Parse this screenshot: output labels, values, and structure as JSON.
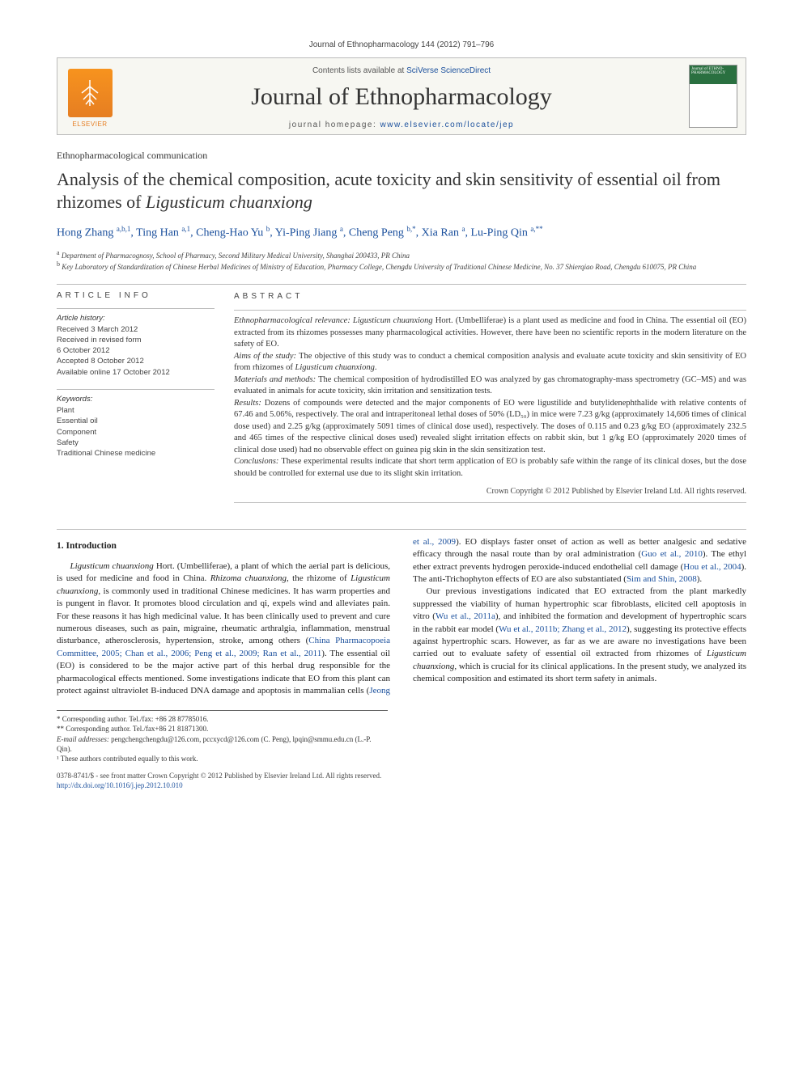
{
  "header": {
    "citation": "Journal of Ethnopharmacology 144 (2012) 791–796",
    "contents_prefix": "Contents lists available at ",
    "contents_link": "SciVerse ScienceDirect",
    "journal_name": "Journal of Ethnopharmacology",
    "homepage_prefix": "journal homepage: ",
    "homepage_url": "www.elsevier.com/locate/jep",
    "elsevier_label": "ELSEVIER",
    "cover_label": "Journal of ETHNO-PHARMACOLOGY"
  },
  "paper": {
    "type": "Ethnopharmacological communication",
    "title_pre": "Analysis of the chemical composition, acute toxicity and skin sensitivity of essential oil from rhizomes of ",
    "title_italic": "Ligusticum chuanxiong",
    "authors_html": "Hong Zhang <sup>a,b,1</sup>, Ting Han <sup>a,1</sup>, Cheng-Hao Yu <sup>b</sup>, Yi-Ping Jiang <sup>a</sup>, Cheng Peng <sup>b,*</sup>, Xia Ran <sup>a</sup>, Lu-Ping Qin <sup>a,**</sup>",
    "affiliations": {
      "a": "Department of Pharmacognosy, School of Pharmacy, Second Military Medical University, Shanghai 200433, PR China",
      "b": "Key Laboratory of Standardization of Chinese Herbal Medicines of Ministry of Education, Pharmacy College, Chengdu University of Traditional Chinese Medicine, No. 37 Shierqiao Road, Chengdu 610075, PR China"
    }
  },
  "article_info": {
    "label": "ARTICLE INFO",
    "history_heading": "Article history:",
    "history": [
      "Received 3 March 2012",
      "Received in revised form",
      "6 October 2012",
      "Accepted 8 October 2012",
      "Available online 17 October 2012"
    ],
    "keywords_heading": "Keywords:",
    "keywords": [
      "Plant",
      "Essential oil",
      "Component",
      "Safety",
      "Traditional Chinese medicine"
    ]
  },
  "abstract": {
    "label": "ABSTRACT",
    "relevance_label": "Ethnopharmacological relevance: ",
    "relevance": "Ligusticum chuanxiong Hort. (Umbelliferae) is a plant used as medicine and food in China. The essential oil (EO) extracted from its rhizomes possesses many pharmacological activities. However, there have been no scientific reports in the modern literature on the safety of EO.",
    "aims_label": "Aims of the study: ",
    "aims": "The objective of this study was to conduct a chemical composition analysis and evaluate acute toxicity and skin sensitivity of EO from rhizomes of Ligusticum chuanxiong.",
    "methods_label": "Materials and methods: ",
    "methods": "The chemical composition of hydrodistilled EO was analyzed by gas chromatography-mass spectrometry (GC–MS) and was evaluated in animals for acute toxicity, skin irritation and sensitization tests.",
    "results_label": "Results: ",
    "results": "Dozens of compounds were detected and the major components of EO were ligustilide and butylidenephthalide with relative contents of 67.46 and 5.06%, respectively. The oral and intraperitoneal lethal doses of 50% (LD₅₀) in mice were 7.23 g/kg (approximately 14,606 times of clinical dose used) and 2.25 g/kg (approximately 5091 times of clinical dose used), respectively. The doses of 0.115 and 0.23 g/kg EO (approximately 232.5 and 465 times of the respective clinical doses used) revealed slight irritation effects on rabbit skin, but 1 g/kg EO (approximately 2020 times of clinical dose used) had no observable effect on guinea pig skin in the skin sensitization test.",
    "conclusions_label": "Conclusions: ",
    "conclusions": "These experimental results indicate that short term application of EO is probably safe within the range of its clinical doses, but the dose should be controlled for external use due to its slight skin irritation.",
    "copyright": "Crown Copyright © 2012 Published by Elsevier Ireland Ltd. All rights reserved."
  },
  "body": {
    "intro_heading": "1.  Introduction",
    "para1a": "Ligusticum chuanxiong",
    "para1b": " Hort. (Umbelliferae), a plant of which the aerial part is delicious, is used for medicine and food in China. ",
    "para1c": "Rhizoma chuanxiong",
    "para1d": ", the rhizome of ",
    "para1e": "Ligusticum chuanxiong",
    "para1f": ", is commonly used in traditional Chinese medicines. It has warm properties and is pungent in flavor. It promotes blood circulation and qi, expels wind and alleviates pain. For these reasons it has high medicinal value. It has been clinically used to prevent and cure numerous diseases, such as pain, migraine, rheumatic arthralgia, inflammation, menstrual disturbance, atherosclerosis, hypertension, stroke, among others (",
    "cite1": "China Pharmacopoeia Committee, 2005; Chan et al., 2006; Peng et al., 2009; Ran et al., 2011",
    "para1g": "). The essential oil (EO) is considered to be the major active ",
    "para2a": "part of this herbal drug responsible for the pharmacological effects mentioned. Some investigations indicate that EO from this plant can protect against ultraviolet B-induced DNA damage and apoptosis in mammalian cells (",
    "cite2": "Jeong et al., 2009",
    "para2b": "). EO displays faster onset of action as well as better analgesic and sedative efficacy through the nasal route than by oral administration (",
    "cite3": "Guo et al., 2010",
    "para2c": "). The ethyl ether extract prevents hydrogen peroxide-induced endothelial cell damage (",
    "cite4": "Hou et al., 2004",
    "para2d": "). The anti-Trichophyton effects of EO are also substantiated (",
    "cite5": "Sim and Shin, 2008",
    "para2e": ").",
    "para3a": "Our previous investigations indicated that EO extracted from the plant markedly suppressed the viability of human hypertrophic scar fibroblasts, elicited cell apoptosis in vitro (",
    "cite6": "Wu et al., 2011a",
    "para3b": "), and inhibited the formation and development of hypertrophic scars in the rabbit ear model (",
    "cite7": "Wu et al., 2011b; Zhang et al., 2012",
    "para3c": "), suggesting its protective effects against hypertrophic scars. However, as far as we are aware no investigations have been carried out to evaluate safety of essential oil extracted from rhizomes of ",
    "para3d": "Ligusticum chuanxiong",
    "para3e": ", which is crucial for its clinical applications. In the present study, we analyzed its chemical composition and estimated its short term safety in animals."
  },
  "footnotes": {
    "corr1": "* Corresponding author. Tel./fax: +86 28 87785016.",
    "corr2": "** Corresponding author. Tel./fax+86 21 81871300.",
    "email_label": "E-mail addresses: ",
    "emails": "pengchengchengdu@126.com, pccxycd@126.com (C. Peng), lpqin@smmu.edu.cn (L.-P. Qin).",
    "contrib": "¹ These authors contributed equally to this work."
  },
  "bottom": {
    "line1": "0378-8741/$ - see front matter Crown Copyright © 2012 Published by Elsevier Ireland Ltd. All rights reserved.",
    "doi": "http://dx.doi.org/10.1016/j.jep.2012.10.010"
  },
  "colors": {
    "link": "#1a4f9c",
    "elsevier_orange": "#e67e22",
    "cover_green": "#2a7040",
    "border_gray": "#bbb",
    "text": "#1a1a1a"
  }
}
